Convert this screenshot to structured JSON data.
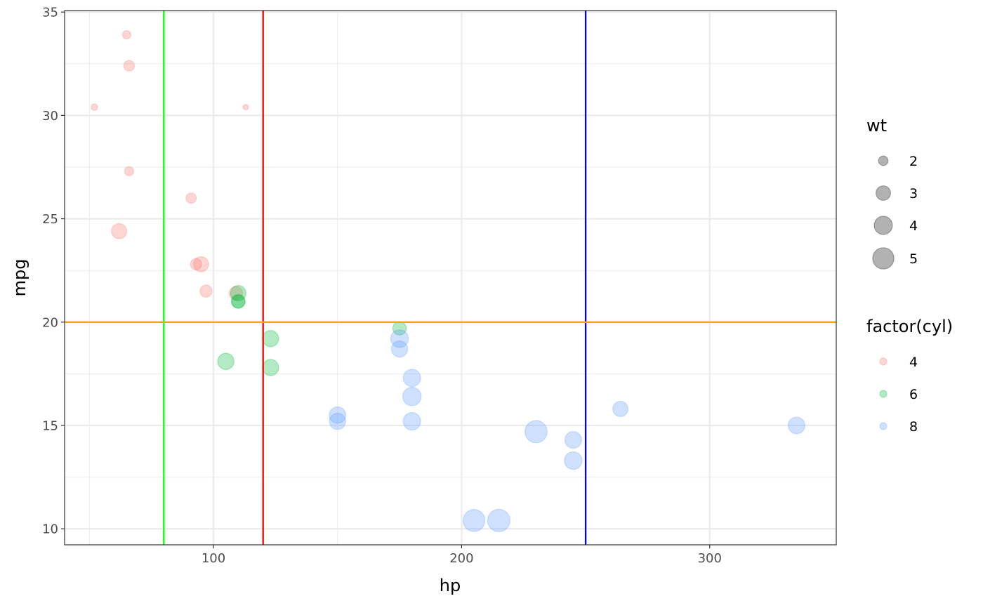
{
  "chart_data": {
    "type": "scatter",
    "title": "",
    "xlabel": "hp",
    "ylabel": "mpg",
    "xlim": [
      40,
      351
    ],
    "ylim": [
      9.225,
      35.075
    ],
    "x_ticks": [
      100,
      200,
      300
    ],
    "y_ticks": [
      10,
      15,
      20,
      25,
      30,
      35
    ],
    "grid": true,
    "legend_position": "right",
    "reference_lines": [
      {
        "orientation": "vertical",
        "value": 80,
        "color": "#00ff00"
      },
      {
        "orientation": "vertical",
        "value": 120,
        "color": "#ff0000"
      },
      {
        "orientation": "vertical",
        "value": 250,
        "color": "#0000ff"
      },
      {
        "orientation": "horizontal",
        "value": 20,
        "color": "#ffa500"
      }
    ],
    "size_legend": {
      "title": "wt",
      "values": [
        2,
        3,
        4,
        5
      ]
    },
    "color_legend": {
      "title": "factor(cyl)",
      "items": [
        {
          "label": "4",
          "color": "#F8766D"
        },
        {
          "label": "6",
          "color": "#00BA38"
        },
        {
          "label": "8",
          "color": "#619CFF"
        }
      ]
    },
    "series": [
      {
        "name": "4",
        "color": "#F8766D",
        "points": [
          {
            "hp": 93,
            "mpg": 22.8,
            "wt": 2.32
          },
          {
            "hp": 62,
            "mpg": 24.4,
            "wt": 3.19
          },
          {
            "hp": 95,
            "mpg": 22.8,
            "wt": 3.15
          },
          {
            "hp": 66,
            "mpg": 32.4,
            "wt": 2.2
          },
          {
            "hp": 52,
            "mpg": 30.4,
            "wt": 1.615
          },
          {
            "hp": 65,
            "mpg": 33.9,
            "wt": 1.835
          },
          {
            "hp": 97,
            "mpg": 21.5,
            "wt": 2.465
          },
          {
            "hp": 66,
            "mpg": 27.3,
            "wt": 1.935
          },
          {
            "hp": 91,
            "mpg": 26.0,
            "wt": 2.14
          },
          {
            "hp": 113,
            "mpg": 30.4,
            "wt": 1.513
          },
          {
            "hp": 109,
            "mpg": 21.4,
            "wt": 2.78
          }
        ]
      },
      {
        "name": "6",
        "color": "#00BA38",
        "points": [
          {
            "hp": 110,
            "mpg": 21.0,
            "wt": 2.62
          },
          {
            "hp": 110,
            "mpg": 21.0,
            "wt": 2.875
          },
          {
            "hp": 110,
            "mpg": 21.4,
            "wt": 3.215
          },
          {
            "hp": 105,
            "mpg": 18.1,
            "wt": 3.46
          },
          {
            "hp": 123,
            "mpg": 19.2,
            "wt": 3.44
          },
          {
            "hp": 123,
            "mpg": 17.8,
            "wt": 3.44
          },
          {
            "hp": 175,
            "mpg": 19.7,
            "wt": 2.77
          }
        ]
      },
      {
        "name": "8",
        "color": "#619CFF",
        "points": [
          {
            "hp": 175,
            "mpg": 18.7,
            "wt": 3.44
          },
          {
            "hp": 245,
            "mpg": 14.3,
            "wt": 3.57
          },
          {
            "hp": 180,
            "mpg": 16.4,
            "wt": 4.07
          },
          {
            "hp": 180,
            "mpg": 17.3,
            "wt": 3.73
          },
          {
            "hp": 180,
            "mpg": 15.2,
            "wt": 3.78
          },
          {
            "hp": 205,
            "mpg": 10.4,
            "wt": 5.25
          },
          {
            "hp": 215,
            "mpg": 10.4,
            "wt": 5.424
          },
          {
            "hp": 230,
            "mpg": 14.7,
            "wt": 5.345
          },
          {
            "hp": 150,
            "mpg": 15.5,
            "wt": 3.52
          },
          {
            "hp": 150,
            "mpg": 15.2,
            "wt": 3.435
          },
          {
            "hp": 245,
            "mpg": 13.3,
            "wt": 3.84
          },
          {
            "hp": 175,
            "mpg": 19.2,
            "wt": 3.845
          },
          {
            "hp": 264,
            "mpg": 15.8,
            "wt": 3.17
          },
          {
            "hp": 335,
            "mpg": 15.0,
            "wt": 3.57
          }
        ]
      }
    ]
  }
}
